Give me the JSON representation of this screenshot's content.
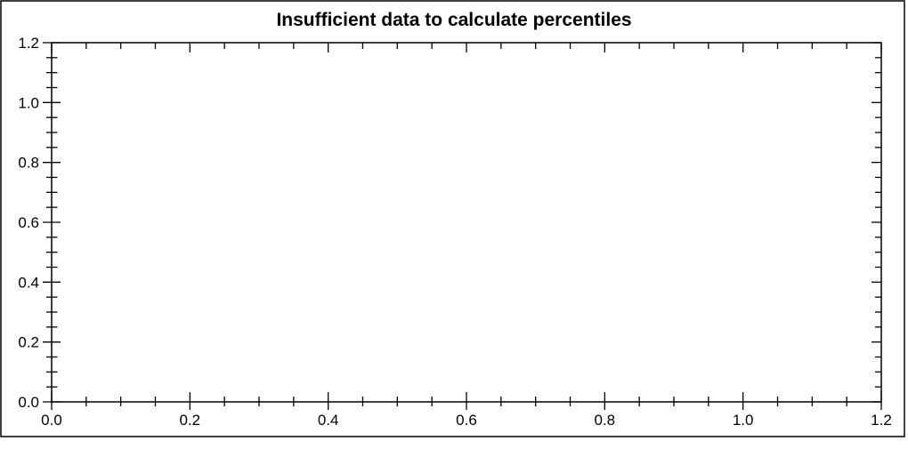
{
  "window": {
    "background": "#ffffff",
    "border_color": "#000000"
  },
  "chart_data": {
    "type": "scatter",
    "title": "Insufficient data to calculate percentiles",
    "series": [],
    "xlabel": "",
    "ylabel": "",
    "xlim": [
      0,
      1.2
    ],
    "ylim": [
      0,
      1.2
    ],
    "x_tick_labels": [
      "0.0",
      "0.2",
      "0.4",
      "0.6",
      "0.8",
      "1.0",
      "1.2"
    ],
    "y_tick_labels": [
      "0.0",
      "0.2",
      "0.4",
      "0.6",
      "0.8",
      "1.0",
      "1.2"
    ],
    "x_major_step": 0.2,
    "y_major_step": 0.2,
    "minor_divisions_per_major": 4,
    "grid": false,
    "legend": false,
    "tick_style": "major ticks cross the left and bottom axes; top and right frame ticks point inward",
    "axis_color": "#000000",
    "text_color": "#000000",
    "plot_background": "#ffffff"
  }
}
